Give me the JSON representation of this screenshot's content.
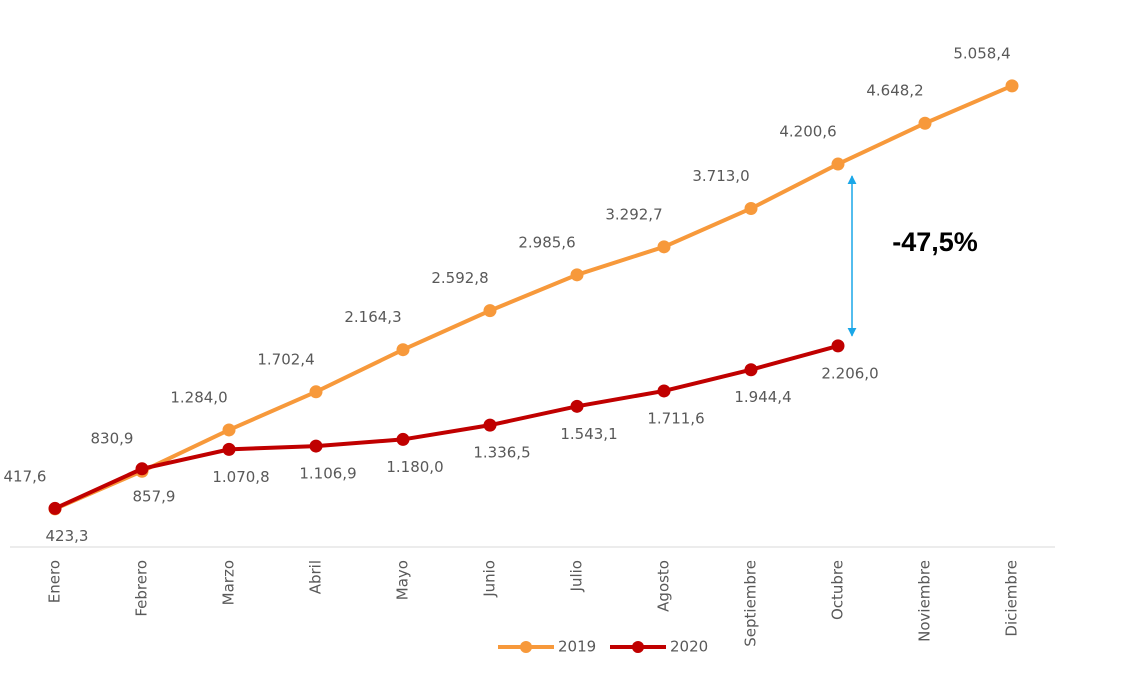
{
  "chart_data": {
    "type": "line",
    "categories": [
      "Enero",
      "Febrero",
      "Marzo",
      "Abril",
      "Mayo",
      "Junio",
      "Julio",
      "Agosto",
      "Septiembre",
      "Octubre",
      "Noviembre",
      "Diciembre"
    ],
    "series": [
      {
        "name": "2019",
        "color": "#f7993b",
        "values": [
          417.6,
          830.9,
          1284.0,
          1702.4,
          2164.3,
          2592.8,
          2985.6,
          3292.7,
          3713.0,
          4200.6,
          4648.2,
          5058.4
        ],
        "value_labels": [
          "417,6",
          "830,9",
          "1.284,0",
          "1.702,4",
          "2.164,3",
          "2.592,8",
          "2.985,6",
          "3.292,7",
          "3.713,0",
          "4.200,6",
          "4.648,2",
          "5.058,4"
        ]
      },
      {
        "name": "2020",
        "color": "#c00000",
        "values": [
          423.3,
          857.9,
          1070.8,
          1106.9,
          1180.0,
          1336.5,
          1543.1,
          1711.6,
          1944.4,
          2206.0,
          null,
          null
        ],
        "value_labels": [
          "423,3",
          "857,9",
          "1.070,8",
          "1.106,9",
          "1.180,0",
          "1.336,5",
          "1.543,1",
          "1.711,6",
          "1.944,4",
          "2.206,0",
          null,
          null
        ]
      }
    ],
    "annotation": "-47,5%",
    "ylim": [
      0,
      6000
    ],
    "grid": false
  }
}
